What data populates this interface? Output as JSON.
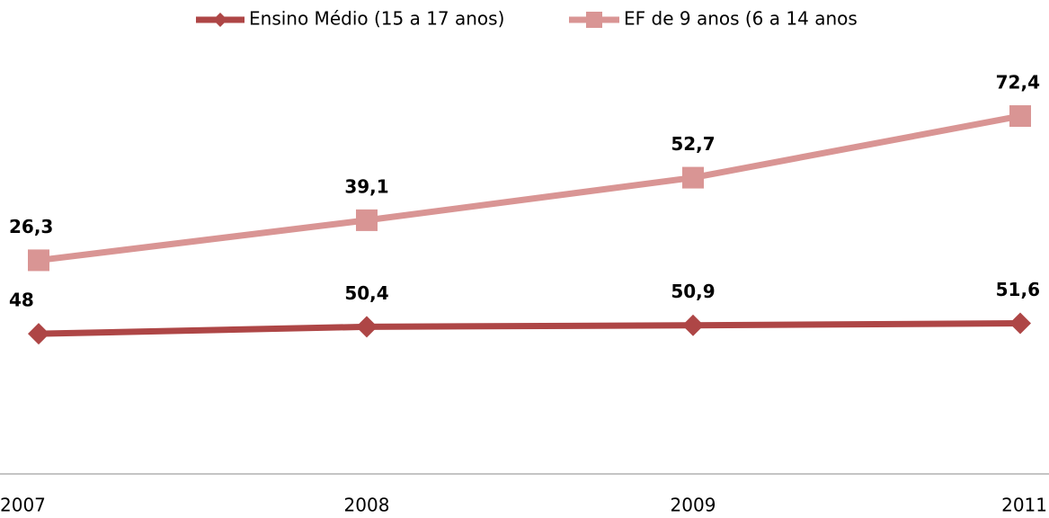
{
  "chart_data": {
    "type": "line",
    "categories": [
      "2007",
      "2008",
      "2009",
      "2011"
    ],
    "series": [
      {
        "name": "Ensino Médio (15 a 17 anos)",
        "color": "#ae4646",
        "marker": "diamond",
        "axis": "y",
        "values": [
          48,
          50.4,
          50.9,
          51.6
        ],
        "value_labels": [
          "48",
          "50,4",
          "50,9",
          "51,6"
        ]
      },
      {
        "name": "EF  de 9 anos (6 a 14 anos",
        "color": "#d99594",
        "marker": "square",
        "axis": "y2",
        "values": [
          26.3,
          39.1,
          52.7,
          72.4
        ],
        "value_labels": [
          "26,3",
          "39,1",
          "52,7",
          "72,4"
        ]
      }
    ],
    "ylim": [
      0,
      150
    ],
    "y2lim": [
      -42,
      98
    ],
    "grid": false,
    "legend": "top"
  }
}
